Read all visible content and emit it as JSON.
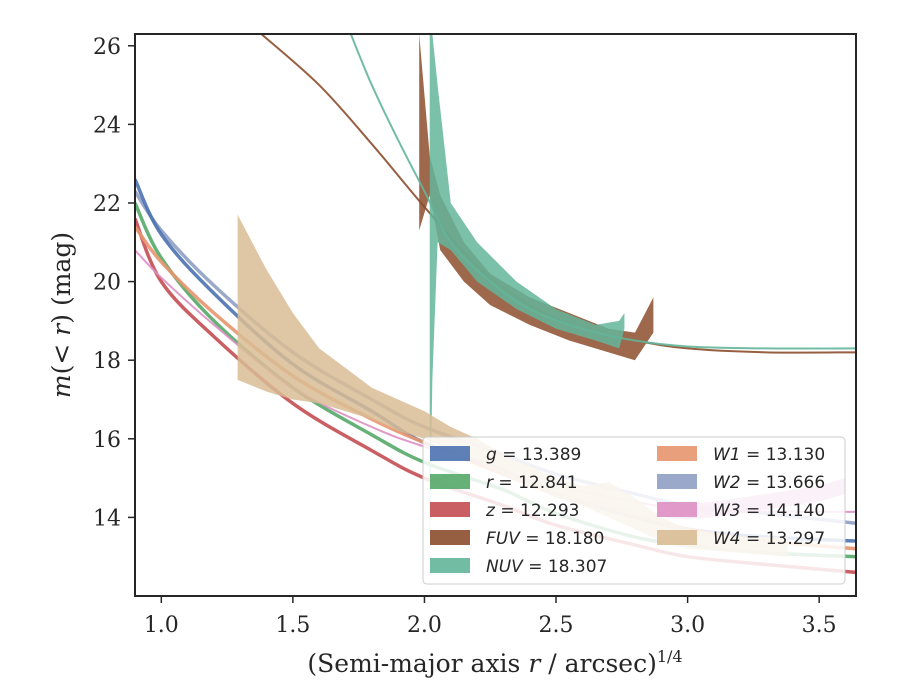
{
  "chart_data": {
    "type": "line",
    "xlabel": "(Semi-major axis r / arcsec)^1/4",
    "ylabel": "m(< r) (mag)",
    "xlim": [
      0.9,
      3.64
    ],
    "ylim": [
      26.3,
      12.0
    ],
    "xticks": [
      "1.0",
      "1.5",
      "2.0",
      "2.5",
      "3.0",
      "3.5"
    ],
    "yticks": [
      "14",
      "16",
      "18",
      "20",
      "22",
      "24",
      "26"
    ],
    "grid": false,
    "legend_position": "lower-right",
    "series": [
      {
        "name": "g = 13.389",
        "label_prefix": "g",
        "label_value": "13.389",
        "color": "#4c72b0",
        "data": [
          [
            0.9,
            22.6
          ],
          [
            1.0,
            21.2
          ],
          [
            1.2,
            19.7
          ],
          [
            1.5,
            17.9
          ],
          [
            1.8,
            16.7
          ],
          [
            2.0,
            15.9
          ],
          [
            2.3,
            15.2
          ],
          [
            2.5,
            14.6
          ],
          [
            2.8,
            14.0
          ],
          [
            3.0,
            13.7
          ],
          [
            3.3,
            13.5
          ],
          [
            3.64,
            13.4
          ]
        ],
        "band": 0.05
      },
      {
        "name": "r = 12.841",
        "label_prefix": "r",
        "label_value": "12.841",
        "color": "#55a868",
        "data": [
          [
            0.9,
            22.0
          ],
          [
            1.0,
            20.6
          ],
          [
            1.2,
            19.0
          ],
          [
            1.5,
            17.3
          ],
          [
            1.8,
            16.1
          ],
          [
            2.0,
            15.4
          ],
          [
            2.3,
            14.7
          ],
          [
            2.5,
            14.1
          ],
          [
            2.8,
            13.5
          ],
          [
            3.0,
            13.3
          ],
          [
            3.3,
            13.1
          ],
          [
            3.64,
            13.0
          ]
        ],
        "band": 0.08
      },
      {
        "name": "z = 12.293",
        "label_prefix": "z",
        "label_value": "12.293",
        "color": "#c44e52",
        "data": [
          [
            0.9,
            21.6
          ],
          [
            1.0,
            20.0
          ],
          [
            1.2,
            18.6
          ],
          [
            1.5,
            16.9
          ],
          [
            1.8,
            15.7
          ],
          [
            2.0,
            15.0
          ],
          [
            2.3,
            14.3
          ],
          [
            2.5,
            13.8
          ],
          [
            2.8,
            13.3
          ],
          [
            3.0,
            13.0
          ],
          [
            3.3,
            12.8
          ],
          [
            3.64,
            12.6
          ]
        ],
        "band": 0.08
      },
      {
        "name": "FUV = 18.180",
        "label_prefix": "FUV",
        "label_value": "18.180",
        "color": "#8c4e2c",
        "data": [
          [
            1.38,
            26.3
          ],
          [
            1.6,
            25.0
          ],
          [
            1.8,
            23.5
          ],
          [
            2.0,
            21.9
          ],
          [
            2.2,
            20.4
          ],
          [
            2.4,
            19.4
          ],
          [
            2.6,
            18.8
          ],
          [
            2.8,
            18.5
          ],
          [
            3.0,
            18.3
          ],
          [
            3.3,
            18.2
          ],
          [
            3.64,
            18.2
          ]
        ],
        "band_data": [
          [
            1.98,
            21.3,
            26.3
          ],
          [
            2.02,
            22.2,
            23.2
          ],
          [
            2.06,
            20.8,
            22.2
          ],
          [
            2.15,
            20.0,
            21.0
          ],
          [
            2.25,
            19.4,
            20.2
          ],
          [
            2.4,
            18.9,
            19.6
          ],
          [
            2.55,
            18.5,
            19.2
          ],
          [
            2.7,
            18.2,
            18.8
          ],
          [
            2.8,
            18.0,
            18.7
          ],
          [
            2.87,
            18.7,
            19.6
          ]
        ]
      },
      {
        "name": "NUV = 18.307",
        "label_prefix": "NUV",
        "label_value": "18.307",
        "color": "#64b59a",
        "data": [
          [
            1.72,
            26.3
          ],
          [
            1.8,
            25.0
          ],
          [
            1.9,
            23.6
          ],
          [
            2.0,
            22.3
          ],
          [
            2.1,
            21.0
          ],
          [
            2.25,
            20.0
          ],
          [
            2.4,
            19.3
          ],
          [
            2.6,
            18.8
          ],
          [
            2.8,
            18.5
          ],
          [
            3.0,
            18.35
          ],
          [
            3.3,
            18.3
          ],
          [
            3.64,
            18.3
          ]
        ],
        "band_data": [
          [
            2.02,
            13.2,
            26.3
          ],
          [
            2.03,
            17.5,
            26.3
          ],
          [
            2.05,
            21.0,
            25.0
          ],
          [
            2.1,
            20.8,
            22.0
          ],
          [
            2.2,
            20.0,
            21.0
          ],
          [
            2.35,
            19.3,
            20.0
          ],
          [
            2.5,
            18.8,
            19.3
          ],
          [
            2.65,
            18.5,
            18.9
          ],
          [
            2.74,
            18.3,
            19.0
          ],
          [
            2.76,
            18.8,
            19.2
          ]
        ]
      },
      {
        "name": "W1 = 13.130",
        "label_prefix": "W1",
        "label_value": "13.130",
        "color": "#e8956e",
        "data": [
          [
            0.9,
            21.4
          ],
          [
            1.0,
            20.5
          ],
          [
            1.2,
            19.2
          ],
          [
            1.5,
            17.6
          ],
          [
            1.8,
            16.5
          ],
          [
            2.0,
            15.9
          ],
          [
            2.3,
            15.1
          ],
          [
            2.5,
            14.6
          ],
          [
            2.8,
            14.1
          ],
          [
            3.0,
            13.7
          ],
          [
            3.3,
            13.4
          ],
          [
            3.64,
            13.2
          ]
        ],
        "band": 0.06
      },
      {
        "name": "W2 = 13.666",
        "label_prefix": "W2",
        "label_value": "13.666",
        "color": "#8f9fc3",
        "data": [
          [
            0.9,
            22.3
          ],
          [
            1.0,
            21.3
          ],
          [
            1.2,
            19.9
          ],
          [
            1.5,
            18.2
          ],
          [
            1.8,
            17.0
          ],
          [
            2.0,
            16.3
          ],
          [
            2.3,
            15.6
          ],
          [
            2.5,
            15.1
          ],
          [
            2.8,
            14.6
          ],
          [
            3.0,
            14.3
          ],
          [
            3.3,
            14.1
          ],
          [
            3.64,
            13.85
          ]
        ],
        "band": 0.06
      },
      {
        "name": "W3 = 14.140",
        "label_prefix": "W3",
        "label_value": "14.140",
        "color": "#dd8fc3",
        "data": [
          [
            0.9,
            20.8
          ],
          [
            1.0,
            20.1
          ],
          [
            1.2,
            18.9
          ],
          [
            1.5,
            17.3
          ],
          [
            1.8,
            16.3
          ],
          [
            2.0,
            15.8
          ],
          [
            2.3,
            15.2
          ],
          [
            2.5,
            14.8
          ],
          [
            2.8,
            14.4
          ],
          [
            3.0,
            14.2
          ],
          [
            3.3,
            14.15
          ],
          [
            3.64,
            14.14
          ]
        ],
        "band_data": [
          [
            2.9,
            14.0,
            14.3
          ],
          [
            3.0,
            13.95,
            14.35
          ],
          [
            3.1,
            14.0,
            14.4
          ],
          [
            3.2,
            14.1,
            14.5
          ],
          [
            3.3,
            14.2,
            14.6
          ],
          [
            3.4,
            14.3,
            14.7
          ],
          [
            3.5,
            14.4,
            14.8
          ],
          [
            3.6,
            14.6,
            15.0
          ]
        ]
      },
      {
        "name": "W4 = 13.297",
        "label_prefix": "W4",
        "label_value": "13.297",
        "color": "#d9bc94",
        "band_data": [
          [
            1.29,
            17.5,
            21.7
          ],
          [
            1.4,
            17.2,
            20.3
          ],
          [
            1.5,
            17.0,
            19.2
          ],
          [
            1.6,
            16.9,
            18.3
          ],
          [
            1.7,
            16.7,
            17.8
          ],
          [
            1.8,
            16.5,
            17.3
          ],
          [
            1.9,
            16.2,
            17.0
          ],
          [
            2.0,
            16.0,
            16.7
          ],
          [
            2.1,
            15.7,
            16.3
          ],
          [
            2.2,
            15.4,
            16.0
          ],
          [
            2.3,
            15.1,
            15.6
          ],
          [
            2.4,
            14.8,
            15.3
          ],
          [
            2.5,
            14.5,
            15.0
          ],
          [
            2.6,
            14.3,
            14.8
          ],
          [
            2.7,
            14.0,
            14.9
          ],
          [
            2.8,
            13.7,
            14.5
          ],
          [
            2.9,
            13.4,
            14.0
          ],
          [
            3.0,
            13.2,
            13.7
          ],
          [
            3.2,
            13.1,
            13.5
          ],
          [
            3.38,
            13.0,
            13.5
          ]
        ]
      }
    ]
  }
}
